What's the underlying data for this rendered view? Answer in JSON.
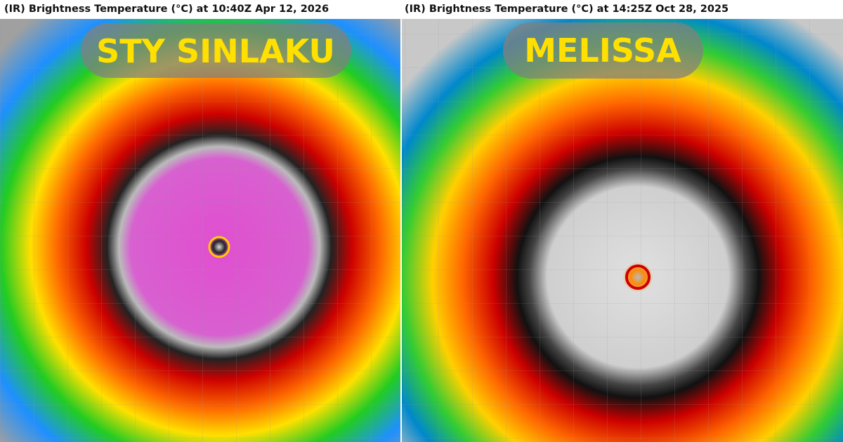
{
  "panels": [
    {
      "header": "(IR) Brightness Temperature (°C) at 10:40Z Apr 12, 2026",
      "label": "STY SINLAKU"
    },
    {
      "header": "(IR) Brightness Temperature (°C) at 14:25Z Oct 28, 2025",
      "label": "MELISSA"
    }
  ]
}
